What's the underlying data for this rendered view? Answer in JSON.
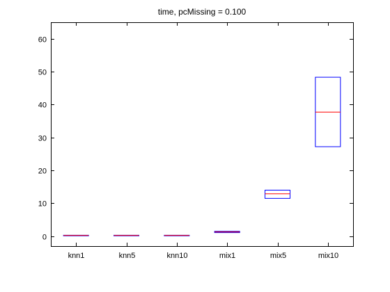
{
  "chart_data": {
    "type": "box",
    "title": "time, pcMissing = 0.100",
    "xlabel": "",
    "ylabel": "",
    "ylim": [
      -3,
      65
    ],
    "yticks": [
      0,
      10,
      20,
      30,
      40,
      50,
      60
    ],
    "categories": [
      "knn1",
      "knn5",
      "knn10",
      "mix1",
      "mix5",
      "mix10"
    ],
    "boxes": [
      {
        "label": "knn1",
        "q1": 0.2,
        "median": 0.25,
        "q3": 0.3
      },
      {
        "label": "knn5",
        "q1": 0.2,
        "median": 0.25,
        "q3": 0.3
      },
      {
        "label": "knn10",
        "q1": 0.2,
        "median": 0.25,
        "q3": 0.3
      },
      {
        "label": "mix1",
        "q1": 1.1,
        "median": 1.3,
        "q3": 1.5
      },
      {
        "label": "mix5",
        "q1": 11.5,
        "median": 12.9,
        "q3": 14.0
      },
      {
        "label": "mix10",
        "q1": 27.2,
        "median": 37.7,
        "q3": 48.3
      }
    ],
    "grid": false,
    "colors": {
      "box": "#0000ff",
      "median": "#ff0000",
      "axis": "#000000"
    }
  }
}
